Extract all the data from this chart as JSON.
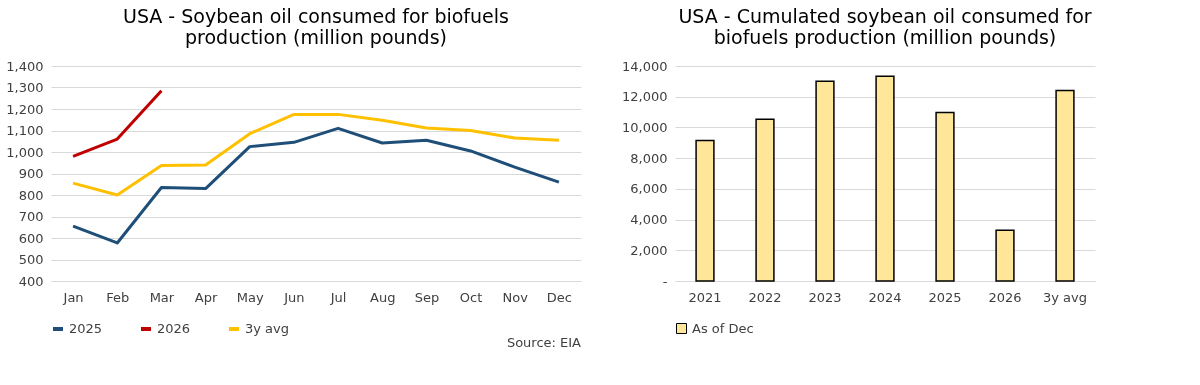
{
  "chart_data": [
    {
      "type": "line",
      "title": "USA -  Soybean oil consumed for biofuels production (million pounds)",
      "categories": [
        "Jan",
        "Feb",
        "Mar",
        "Apr",
        "May",
        "Jun",
        "Jul",
        "Aug",
        "Sep",
        "Oct",
        "Nov",
        "Dec"
      ],
      "series": [
        {
          "name": "2025",
          "color": "#1f4e79",
          "values": [
            655,
            577,
            835,
            830,
            1025,
            1045,
            1110,
            1042,
            1055,
            1005,
            930,
            860
          ]
        },
        {
          "name": "2026",
          "color": "#c00000",
          "values": [
            980,
            1060,
            1285,
            null,
            null,
            null,
            null,
            null,
            null,
            null,
            null,
            null
          ]
        },
        {
          "name": "3y avg",
          "color": "#ffc000",
          "values": [
            855,
            800,
            937,
            940,
            1085,
            1175,
            1175,
            1148,
            1112,
            1100,
            1065,
            1055
          ]
        }
      ],
      "ylim": [
        400,
        1400
      ],
      "yticks": [
        {
          "value": 400,
          "label": "400"
        },
        {
          "value": 500,
          "label": "500"
        },
        {
          "value": 600,
          "label": "600"
        },
        {
          "value": 700,
          "label": "700"
        },
        {
          "value": 800,
          "label": "800"
        },
        {
          "value": 900,
          "label": "900"
        },
        {
          "value": 1000,
          "label": "1,000"
        },
        {
          "value": 1100,
          "label": "1,100"
        },
        {
          "value": 1200,
          "label": "1,200"
        },
        {
          "value": 1300,
          "label": "1,300"
        },
        {
          "value": 1400,
          "label": "1,400"
        }
      ],
      "grid": "y",
      "legend": "bottom",
      "marker": "none",
      "line_style": "solid",
      "annotations": [
        "Source: EIA"
      ]
    },
    {
      "type": "bar",
      "title": "USA - Cumulated soybean oil consumed for biofuels production (million pounds)",
      "categories": [
        "2021",
        "2022",
        "2023",
        "2024",
        "2025",
        "2026",
        "3y avg"
      ],
      "series": [
        {
          "name": "As of Dec",
          "color": "#ffe699",
          "values": [
            9150,
            10530,
            13010,
            13330,
            10970,
            3300,
            12410
          ]
        }
      ],
      "ylim": [
        0,
        14000
      ],
      "yticks": [
        {
          "value": 0,
          "label": "-"
        },
        {
          "value": 2000,
          "label": "2,000"
        },
        {
          "value": 4000,
          "label": "4,000"
        },
        {
          "value": 6000,
          "label": "6,000"
        },
        {
          "value": 8000,
          "label": "8,000"
        },
        {
          "value": 10000,
          "label": "10,000"
        },
        {
          "value": 12000,
          "label": "12,000"
        },
        {
          "value": 14000,
          "label": "14,000"
        }
      ],
      "grid": "y",
      "legend": "bottom"
    }
  ]
}
